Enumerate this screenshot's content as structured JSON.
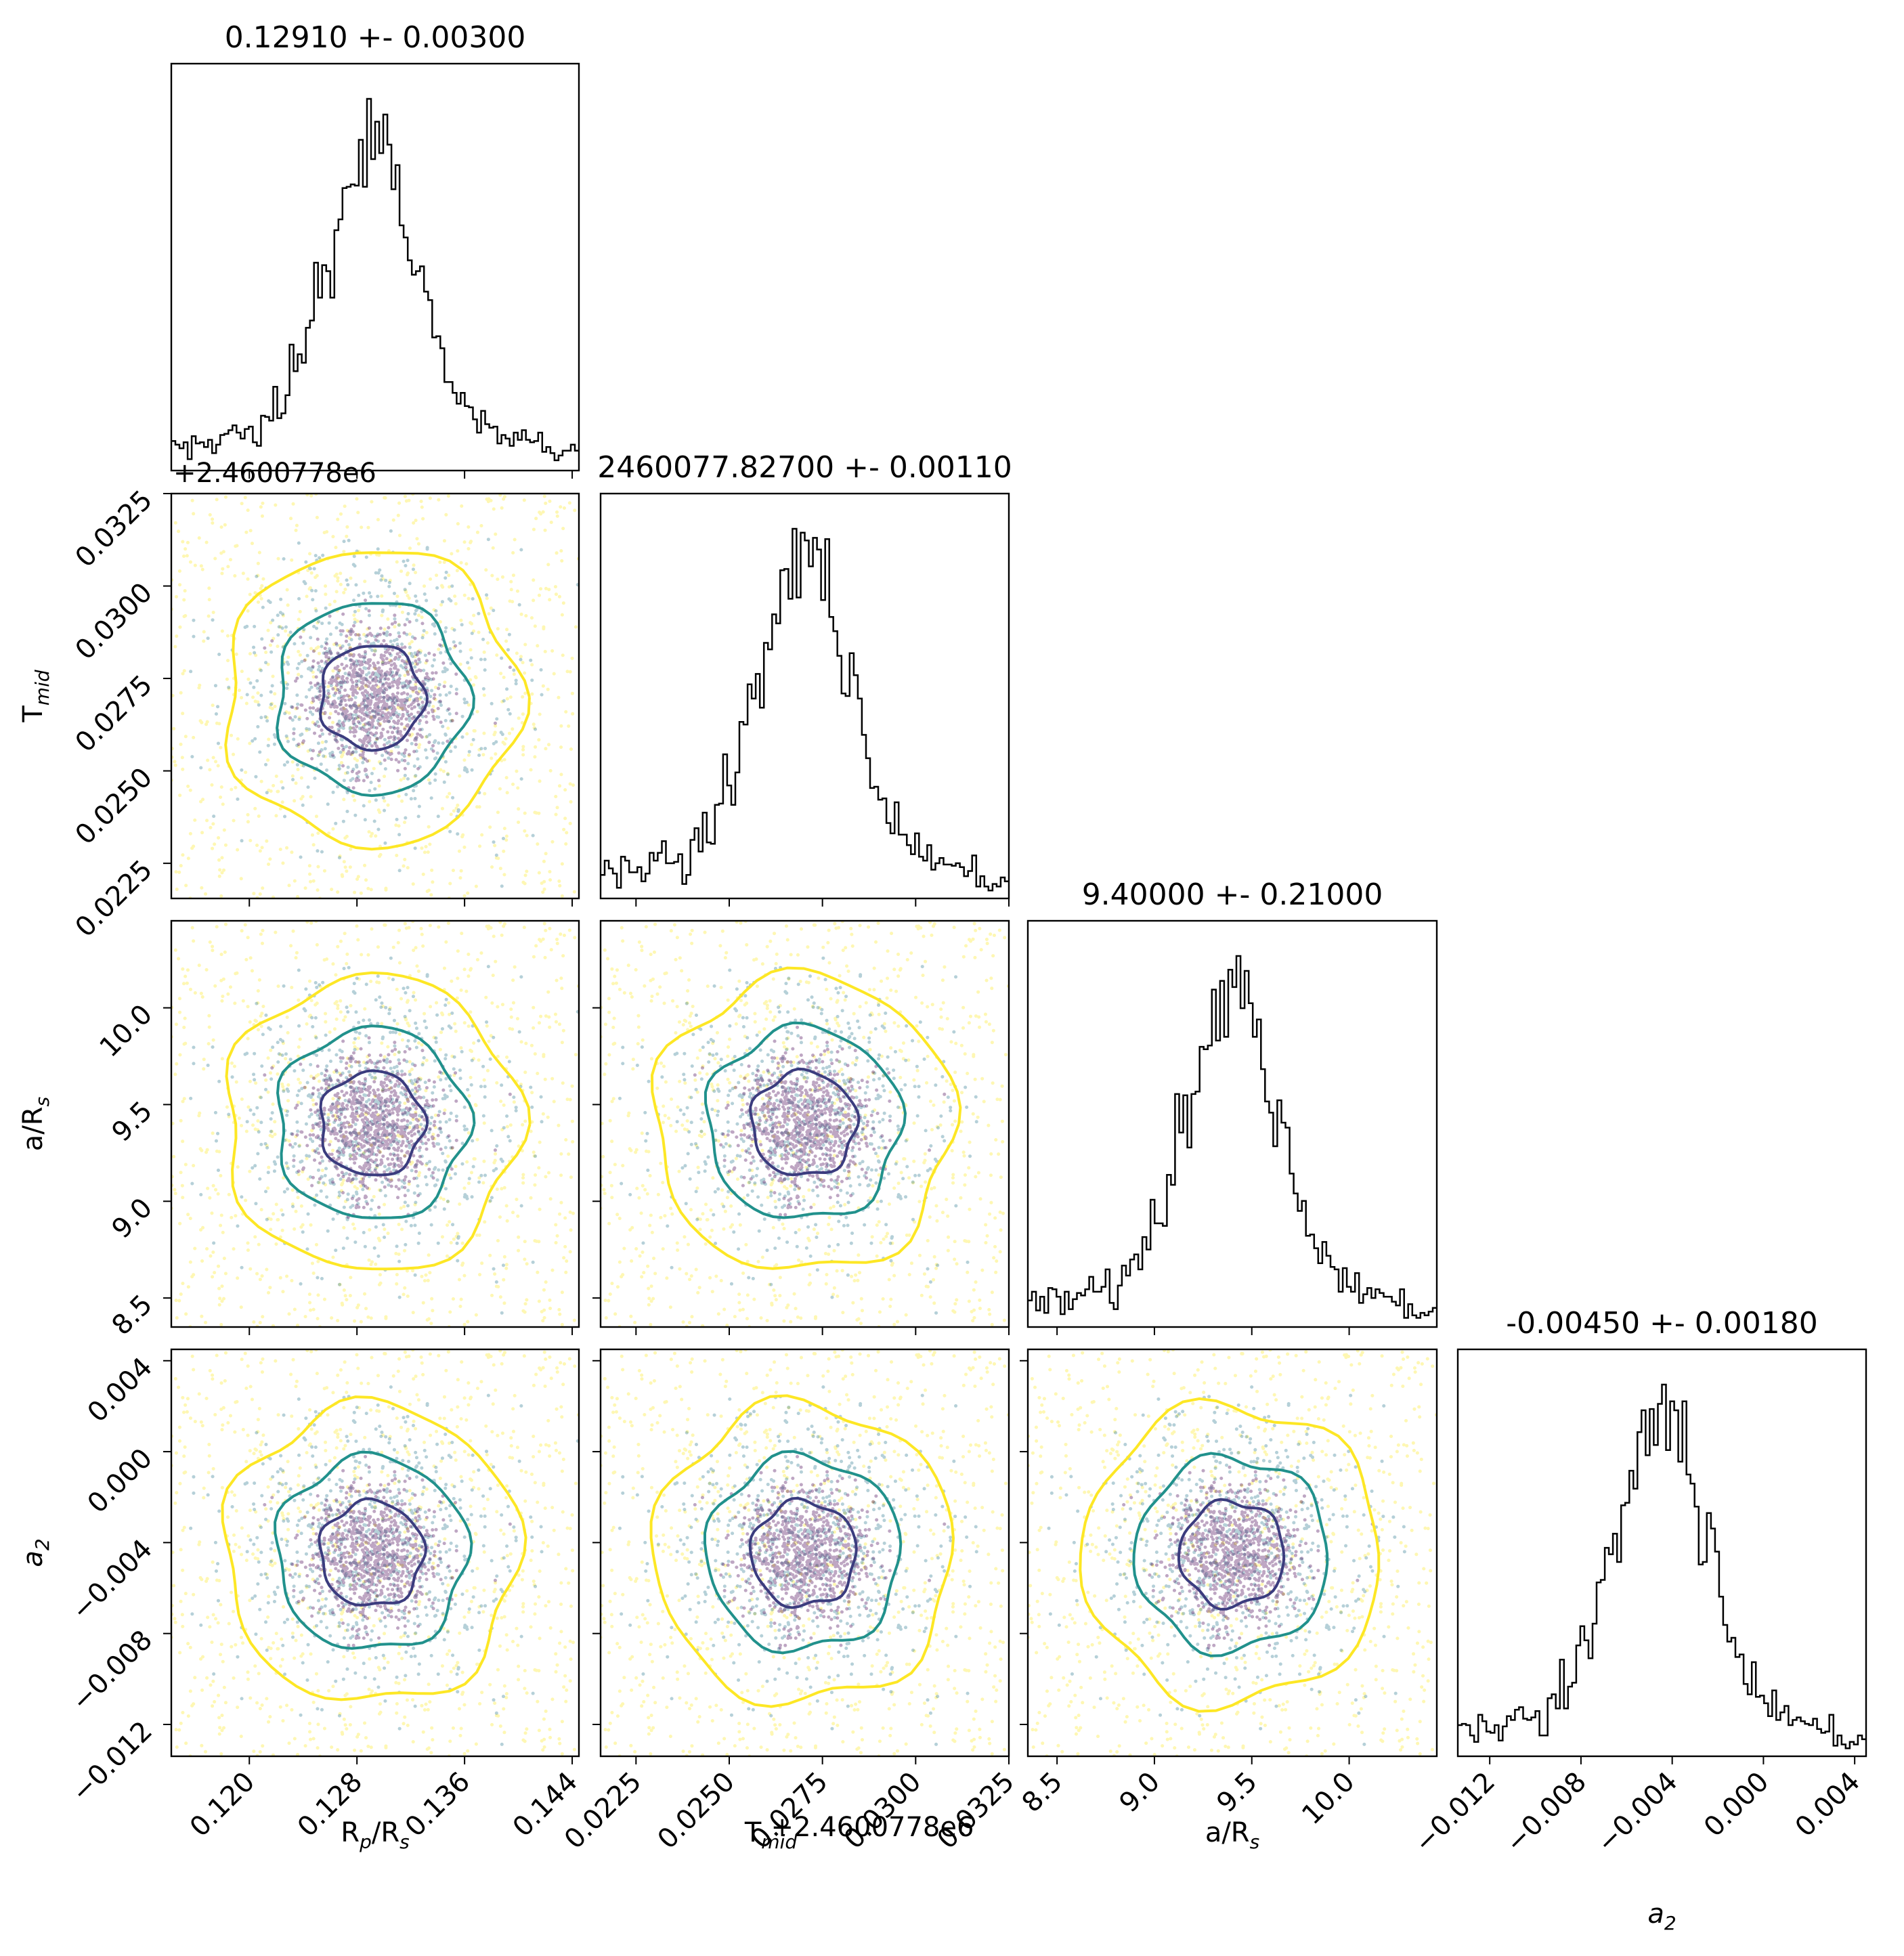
{
  "chart_data": {
    "type": "corner",
    "colors": {
      "hist_line": "#000000",
      "contour_inner": "#3b3c7e",
      "contour_mid": "#21918c",
      "contour_outer": "#fde725",
      "points_core": "#440154",
      "points_mid": "#2a788e",
      "points_outer": "#fde725"
    },
    "parameters": [
      {
        "id": "rp",
        "label": "R_p/R_s",
        "title": "0.12910 +- 0.00300",
        "center": 0.1291,
        "sigma": 0.003,
        "range": [
          0.1142,
          0.1445
        ],
        "ticks": [
          0.12,
          0.128,
          0.136,
          0.144
        ],
        "tick_labels": [
          "0.120",
          "0.128",
          "0.136",
          "0.144"
        ]
      },
      {
        "id": "tmid",
        "label": "T_mid",
        "title": "2460077.82700 +- 0.00110",
        "offset_label": "+2.4600778e6",
        "center": 0.027,
        "sigma": 0.0011,
        "range": [
          0.02155,
          0.0325
        ],
        "ticks": [
          0.0225,
          0.025,
          0.0275,
          0.03,
          0.0325
        ],
        "tick_labels": [
          "0.0225",
          "0.0250",
          "0.0275",
          "0.0300",
          "0.0325"
        ]
      },
      {
        "id": "ars",
        "label": "a/R_s",
        "title": "9.40000 +- 0.21000",
        "center": 9.4,
        "sigma": 0.21,
        "range": [
          8.35,
          10.45
        ],
        "ticks": [
          8.5,
          9.0,
          9.5,
          10.0
        ],
        "tick_labels": [
          "8.5",
          "9.0",
          "9.5",
          "10.0"
        ]
      },
      {
        "id": "a2",
        "label": "a_2",
        "title": "-0.00450 +- 0.00180",
        "center": -0.0045,
        "sigma": 0.0018,
        "range": [
          -0.0134,
          0.0045
        ],
        "ticks": [
          -0.012,
          -0.008,
          -0.004,
          0.0,
          0.004
        ],
        "tick_labels": [
          "−0.012",
          "−0.008",
          "−0.004",
          "0.000",
          "0.004"
        ]
      }
    ]
  }
}
